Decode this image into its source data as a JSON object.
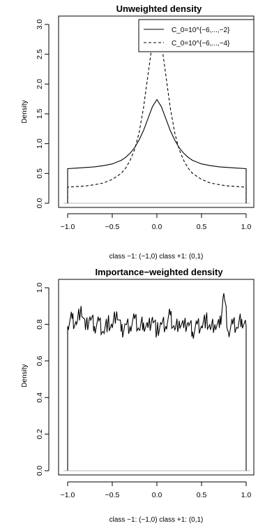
{
  "chart_data": [
    {
      "type": "line",
      "title": "Unweighted density",
      "xlabel": "class −1: (−1,0)  class +1: (0,1)",
      "ylabel": "Density",
      "xlim": [
        -1.0,
        1.0
      ],
      "ylim": [
        0,
        3.0
      ],
      "x_ticks": [
        "−1.0",
        "−0.5",
        "0.0",
        "0.5",
        "1.0"
      ],
      "x_tick_values": [
        -1.0,
        -0.5,
        0.0,
        0.5,
        1.0
      ],
      "y_ticks": [
        "0.0",
        "0.5",
        "1.0",
        "1.5",
        "2.0",
        "2.5",
        "3.0"
      ],
      "y_tick_values": [
        0.0,
        0.5,
        1.0,
        1.5,
        2.0,
        2.5,
        3.0
      ],
      "legend_position": "top-right",
      "series": [
        {
          "name": "C_0=10^{−6,...,−2}",
          "style": "solid",
          "x": [
            -1.0,
            -0.9,
            -0.8,
            -0.7,
            -0.6,
            -0.5,
            -0.4,
            -0.35,
            -0.3,
            -0.25,
            -0.2,
            -0.15,
            -0.1,
            -0.05,
            0.0,
            0.05,
            0.1,
            0.15,
            0.2,
            0.25,
            0.3,
            0.35,
            0.4,
            0.5,
            0.6,
            0.7,
            0.8,
            0.9,
            1.0
          ],
          "y": [
            0.58,
            0.59,
            0.6,
            0.61,
            0.63,
            0.66,
            0.72,
            0.77,
            0.84,
            0.93,
            1.06,
            1.22,
            1.42,
            1.62,
            1.74,
            1.62,
            1.42,
            1.22,
            1.06,
            0.93,
            0.84,
            0.77,
            0.72,
            0.66,
            0.63,
            0.61,
            0.6,
            0.59,
            0.58
          ]
        },
        {
          "name": "C_0=10^{−6,...,−4}",
          "style": "dashed",
          "x": [
            -1.0,
            -0.9,
            -0.8,
            -0.7,
            -0.6,
            -0.5,
            -0.4,
            -0.35,
            -0.3,
            -0.25,
            -0.2,
            -0.15,
            -0.1,
            -0.05,
            0.0,
            0.05,
            0.1,
            0.15,
            0.2,
            0.25,
            0.3,
            0.35,
            0.4,
            0.5,
            0.6,
            0.7,
            0.8,
            0.9,
            1.0
          ],
          "y": [
            0.27,
            0.28,
            0.29,
            0.31,
            0.34,
            0.4,
            0.5,
            0.59,
            0.72,
            0.9,
            1.18,
            1.6,
            2.15,
            2.7,
            2.97,
            2.7,
            2.15,
            1.6,
            1.18,
            0.9,
            0.72,
            0.59,
            0.5,
            0.4,
            0.34,
            0.31,
            0.29,
            0.28,
            0.27
          ]
        }
      ]
    },
    {
      "type": "line",
      "title": "Importance−weighted density",
      "xlabel": "class −1: (−1,0)  class +1: (0,1)",
      "ylabel": "Density",
      "xlim": [
        -1.0,
        1.0
      ],
      "ylim": [
        0,
        1.0
      ],
      "x_ticks": [
        "−1.0",
        "−0.5",
        "0.0",
        "0.5",
        "1.0"
      ],
      "x_tick_values": [
        -1.0,
        -0.5,
        0.0,
        0.5,
        1.0
      ],
      "y_ticks": [
        "0.0",
        "0.2",
        "0.4",
        "0.6",
        "0.8",
        "1.0"
      ],
      "y_tick_values": [
        0.0,
        0.2,
        0.4,
        0.6,
        0.8,
        1.0
      ],
      "series": [
        {
          "style": "solid",
          "x": [
            -1.0,
            -0.95,
            -0.9,
            -0.85,
            -0.8,
            -0.75,
            -0.7,
            -0.65,
            -0.6,
            -0.55,
            -0.5,
            -0.45,
            -0.4,
            -0.35,
            -0.3,
            -0.25,
            -0.2,
            -0.15,
            -0.1,
            -0.05,
            0.0,
            0.05,
            0.1,
            0.15,
            0.2,
            0.25,
            0.3,
            0.35,
            0.4,
            0.45,
            0.5,
            0.55,
            0.6,
            0.65,
            0.7,
            0.75,
            0.8,
            0.85,
            0.9,
            0.95,
            1.0
          ],
          "y": [
            0.79,
            0.83,
            0.8,
            0.9,
            0.77,
            0.84,
            0.79,
            0.82,
            0.76,
            0.81,
            0.78,
            0.87,
            0.76,
            0.8,
            0.79,
            0.83,
            0.77,
            0.81,
            0.78,
            0.84,
            0.76,
            0.8,
            0.79,
            0.85,
            0.77,
            0.82,
            0.78,
            0.81,
            0.76,
            0.8,
            0.79,
            0.83,
            0.77,
            0.8,
            0.78,
            0.97,
            0.76,
            0.8,
            0.78,
            0.83,
            0.79
          ]
        }
      ]
    }
  ]
}
